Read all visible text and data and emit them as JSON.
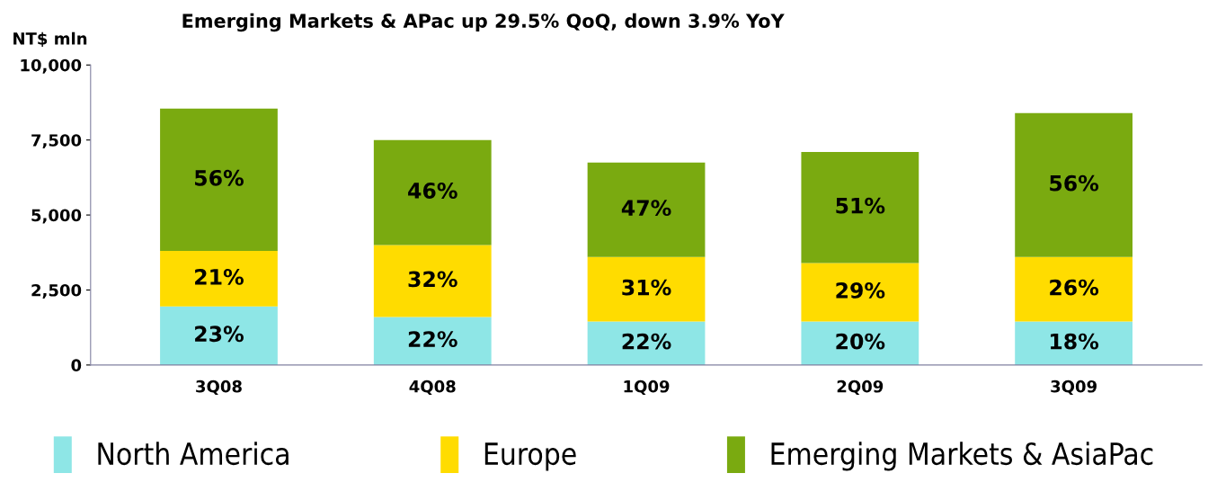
{
  "chart_data": {
    "type": "bar",
    "stacked": true,
    "title": "Emerging Markets & APac up 29.5% QoQ, down 3.9% YoY",
    "ylabel": "NT$ mln",
    "categories": [
      "3Q08",
      "4Q08",
      "1Q09",
      "2Q09",
      "3Q09"
    ],
    "series": [
      {
        "name": "North America",
        "color": "#8ee6e6",
        "values": [
          1950,
          1600,
          1450,
          1450,
          1450
        ]
      },
      {
        "name": "Europe",
        "color": "#ffdc00",
        "values": [
          1850,
          2400,
          2150,
          1950,
          2150
        ]
      },
      {
        "name": "Emerging Markets & AsiaPac",
        "color": "#7aaa10",
        "values": [
          4750,
          3500,
          3150,
          3700,
          4800
        ]
      }
    ],
    "annotations": [
      "23%",
      "22%",
      "22%",
      "20%",
      "18%",
      "21%",
      "32%",
      "31%",
      "29%",
      "26%",
      "56%",
      "46%",
      "47%",
      "51%",
      "56%"
    ],
    "ylim": [
      0,
      10000
    ],
    "yticks": [
      0,
      {
        "value": 2500,
        "label": "2,500"
      },
      {
        "value": 5000,
        "label": "5,000"
      },
      {
        "value": 7500,
        "label": "7,500"
      },
      {
        "value": 10000,
        "label": "10,000"
      }
    ],
    "grid": false,
    "legend": "bottom"
  }
}
